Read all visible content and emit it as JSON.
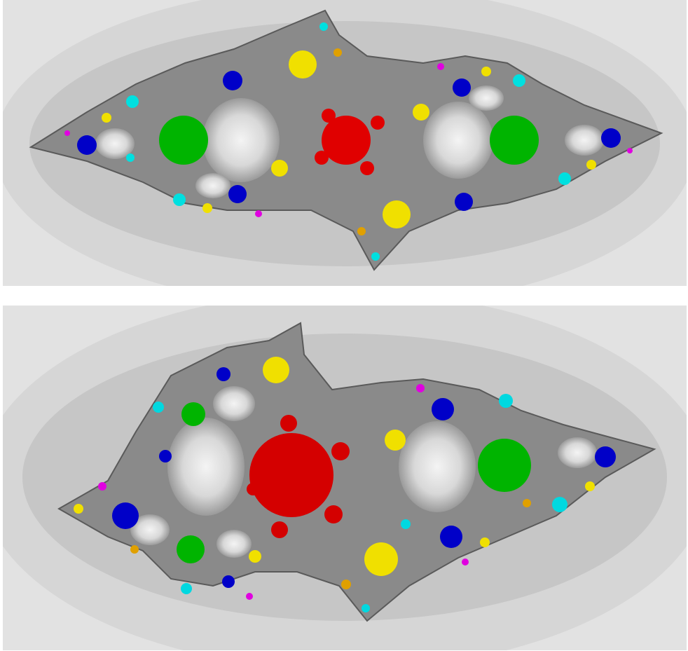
{
  "figure": {
    "panels": [
      {
        "id": "top",
        "bulb_colors": {
          "red": "#e00000",
          "green": "#00b400",
          "blue": "#0000c8",
          "yellow": "#f0e000",
          "cyan": "#00e0e0",
          "magenta": "#e000e0",
          "orange": "#e0a000"
        }
      },
      {
        "id": "bottom",
        "bulb_colors": {
          "red": "#d40000",
          "green": "#00b400",
          "blue": "#0000c8",
          "yellow": "#f0e000",
          "cyan": "#00d8e0",
          "magenta": "#e000e0",
          "orange": "#e0a000"
        }
      }
    ],
    "background_gradient": [
      "#e4e4e4",
      "#d2d2d2",
      "#b8b8b8",
      "#8c8c8c",
      "#606060"
    ]
  }
}
